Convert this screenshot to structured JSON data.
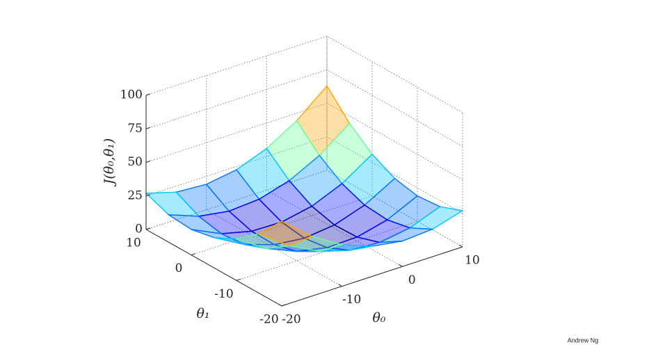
{
  "chart_data": {
    "type": "surface3d",
    "xlabel": "θ₀",
    "ylabel": "θ₁",
    "zlabel": "J(θ₀,θ₁)",
    "x": [
      -20,
      -15,
      -10,
      -5,
      0,
      5,
      10
    ],
    "y": [
      -20,
      -15,
      -10,
      -5,
      0,
      5,
      10
    ],
    "z": [
      [
        63,
        44.5,
        31,
        22.5,
        19,
        20.5,
        27
      ],
      [
        44.5,
        28,
        16.5,
        10,
        8.5,
        12,
        20.5
      ],
      [
        31,
        16.5,
        7,
        2.5,
        3,
        8.5,
        19
      ],
      [
        22.5,
        10,
        2.5,
        0,
        2.5,
        10,
        22.5
      ],
      [
        19,
        8.5,
        3,
        2.5,
        7,
        16.5,
        31
      ],
      [
        20.5,
        12,
        8.5,
        10,
        16.5,
        28,
        44.5
      ],
      [
        27,
        20.5,
        19,
        22.5,
        31,
        44.5,
        63
      ]
    ],
    "colormap": "jet",
    "xlim": [
      -20,
      10
    ],
    "xticks": [
      -20,
      -10,
      0,
      10
    ],
    "ylim": [
      -20,
      10
    ],
    "yticks": [
      -20,
      -10,
      0,
      10
    ],
    "zlim": [
      0,
      100
    ],
    "zticks": [
      0,
      25,
      50,
      75,
      100
    ],
    "grid": true
  },
  "credit": "Andrew Ng"
}
